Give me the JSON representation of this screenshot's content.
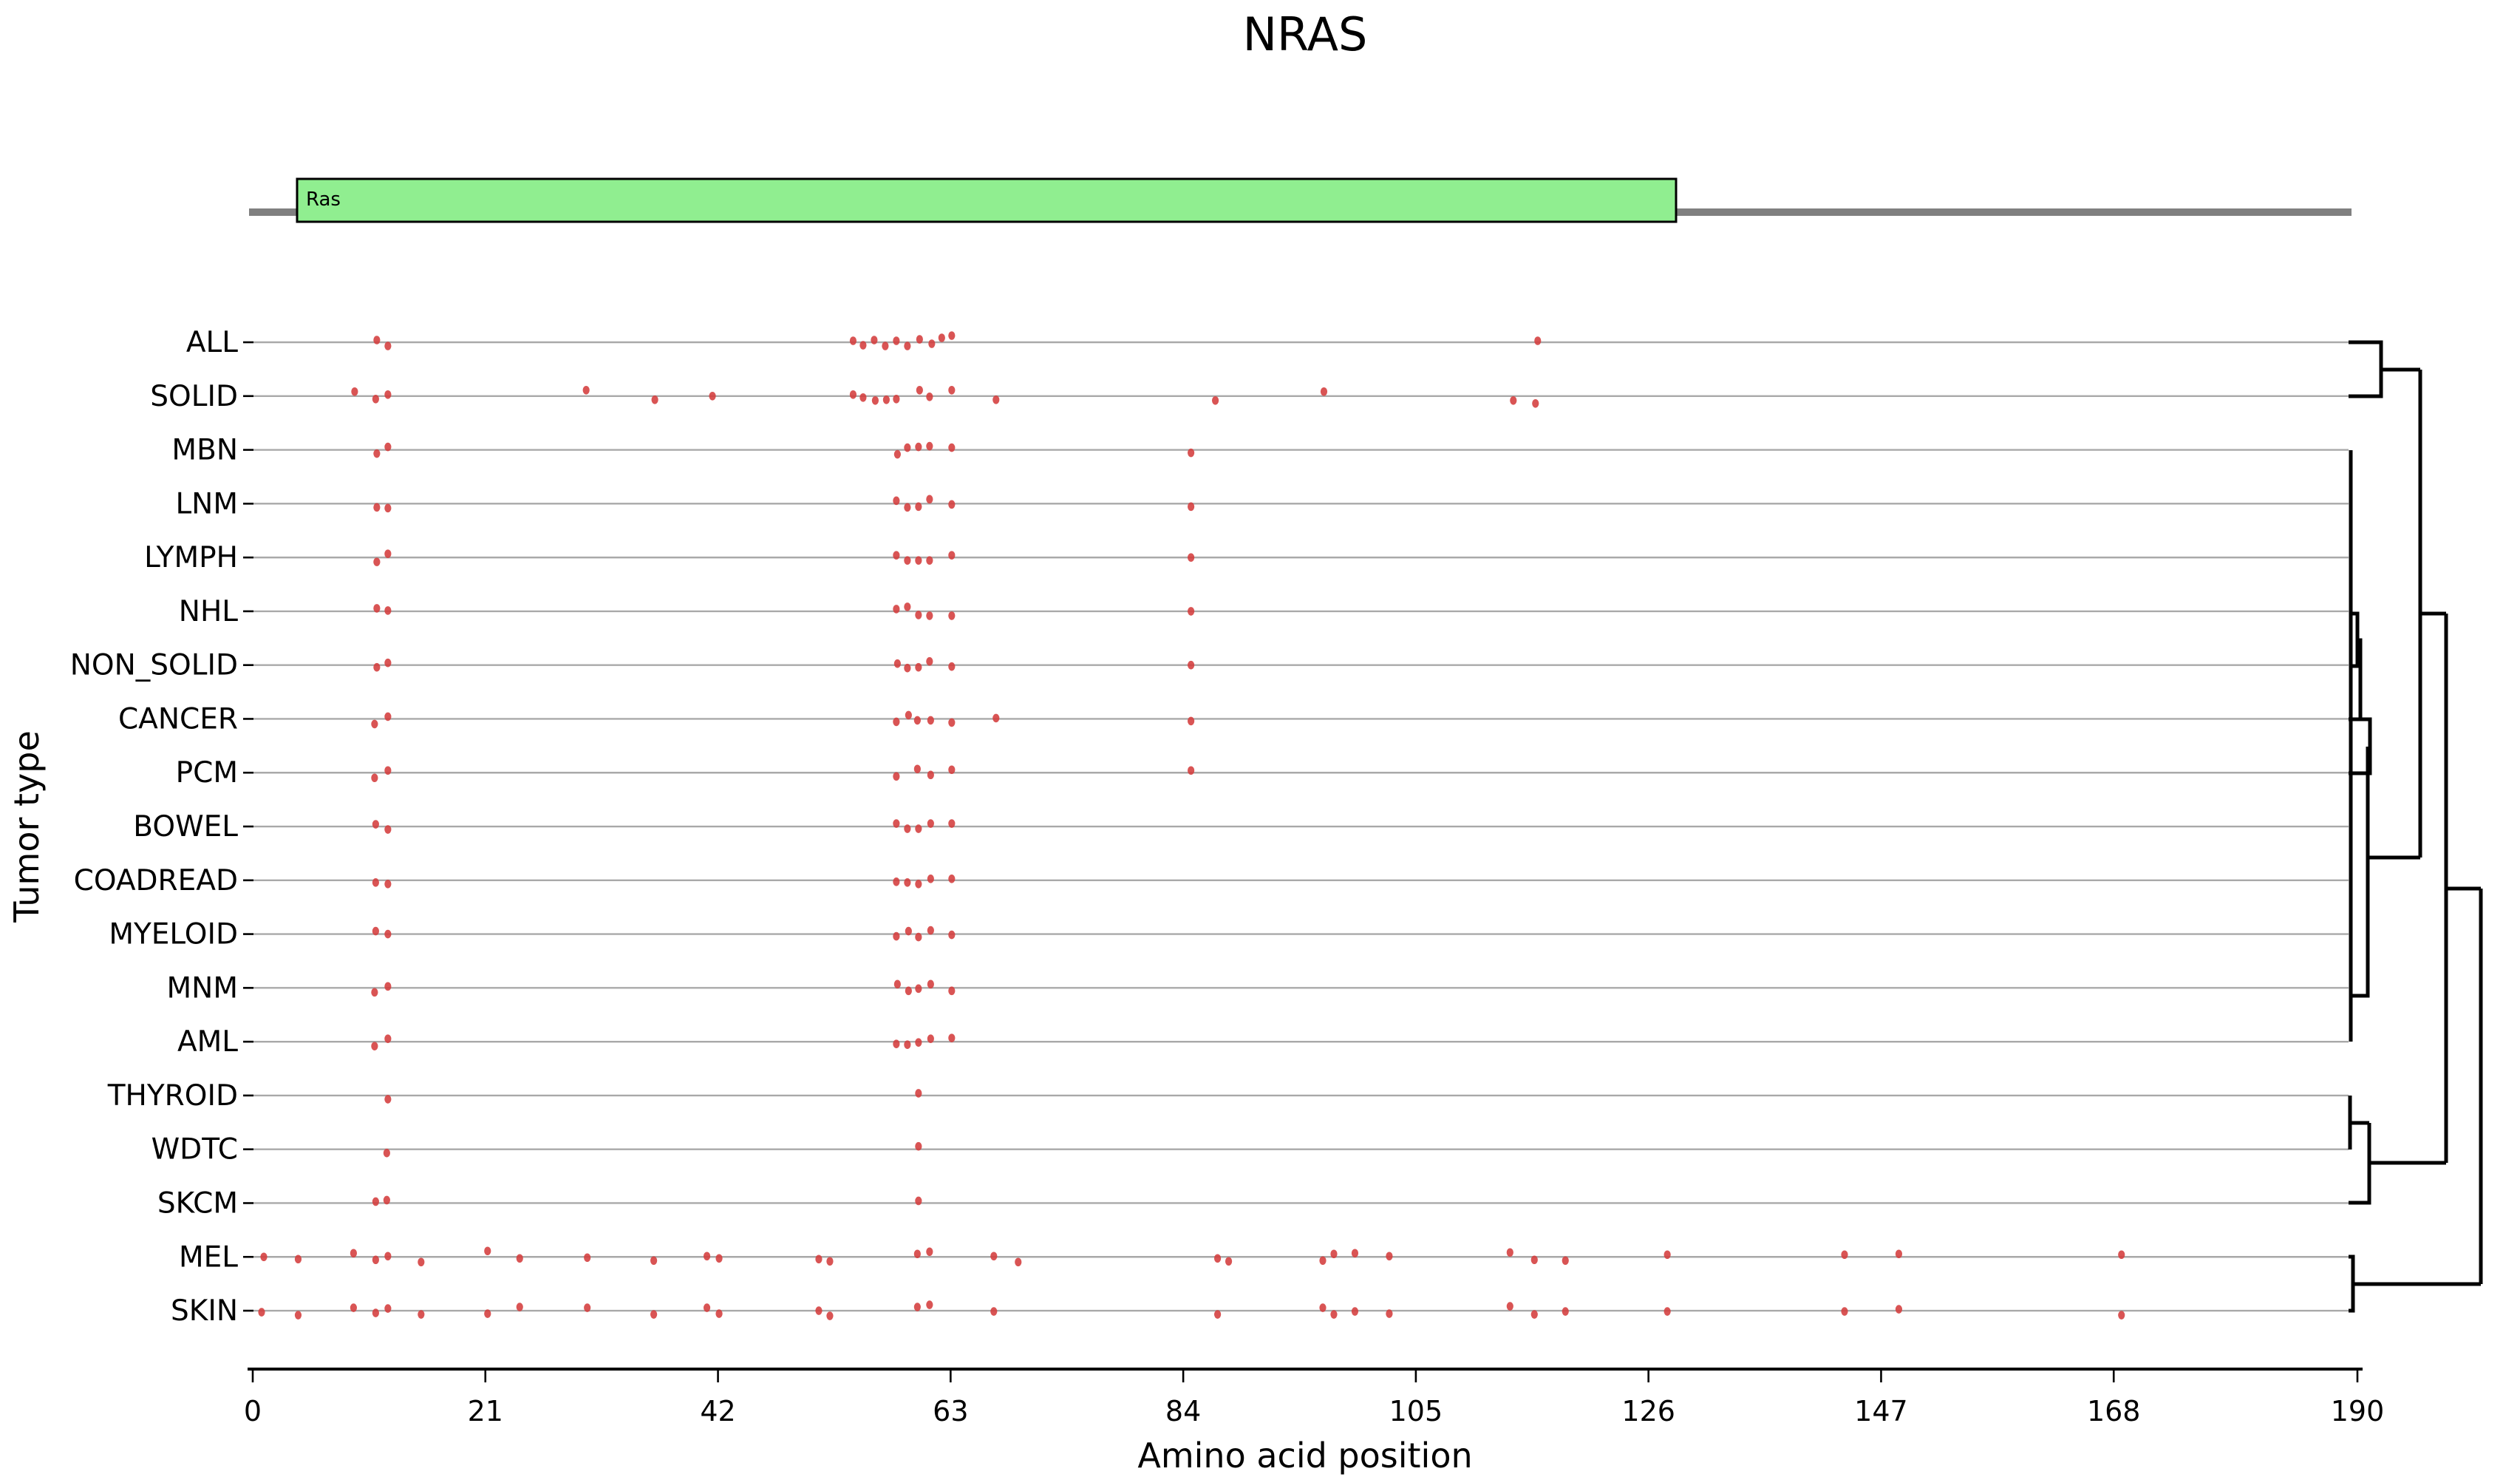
{
  "figure": {
    "title": "NRAS"
  },
  "protein_track": {
    "label": "Ras",
    "domain_start_aa": 4,
    "domain_end_aa": 128.5,
    "backbone_start_aa": 0,
    "backbone_end_aa": 190,
    "domain_fill": "#90ee90",
    "domain_border": "#000000",
    "backbone_color": "#808080"
  },
  "chart_data": {
    "type": "scatter",
    "title": "NRAS",
    "xlabel": "Amino acid position",
    "ylabel": "Tumor type",
    "xlim": [
      0,
      190
    ],
    "xticks": [
      0,
      21,
      42,
      63,
      84,
      105,
      126,
      147,
      168,
      190
    ],
    "grid": "horizontal-gray-rows",
    "legend": "none",
    "categories": [
      "ALL",
      "SOLID",
      "MBN",
      "LNM",
      "LYMPH",
      "NHL",
      "NON_SOLID",
      "CANCER",
      "PCM",
      "BOWEL",
      "COADREAD",
      "MYELOID",
      "MNM",
      "AML",
      "THYROID",
      "WDTC",
      "SKCM",
      "MEL",
      "SKIN"
    ],
    "point_style": {
      "color": "#d43c3c",
      "opacity": 0.88,
      "radius_x": 4.6,
      "radius_y": 5.8
    },
    "grid_color": "#a9a9a9",
    "series": [
      {
        "name": "ALL",
        "points": [
          [
            11.2,
            -3
          ],
          [
            12.2,
            5
          ],
          [
            54.2,
            -2
          ],
          [
            55.1,
            4
          ],
          [
            56.1,
            -3
          ],
          [
            57.1,
            5
          ],
          [
            58.1,
            -2
          ],
          [
            59.1,
            5
          ],
          [
            60.2,
            -4
          ],
          [
            61.3,
            2
          ],
          [
            62.2,
            -6
          ],
          [
            63.1,
            -9
          ],
          [
            116,
            -2
          ]
        ]
      },
      {
        "name": "SOLID",
        "points": [
          [
            9.2,
            -6
          ],
          [
            11.1,
            4
          ],
          [
            12.2,
            -2
          ],
          [
            30.1,
            -8
          ],
          [
            36.3,
            5
          ],
          [
            41.5,
            0
          ],
          [
            54.2,
            -2
          ],
          [
            55.1,
            2
          ],
          [
            56.2,
            6
          ],
          [
            57.2,
            5
          ],
          [
            58.1,
            4
          ],
          [
            60.2,
            -8
          ],
          [
            61.1,
            1
          ],
          [
            63.1,
            -8
          ],
          [
            67.1,
            5
          ],
          [
            86.9,
            6
          ],
          [
            96.7,
            -6
          ],
          [
            113.8,
            6
          ],
          [
            115.8,
            10
          ]
        ]
      },
      {
        "name": "MBN",
        "points": [
          [
            11.2,
            5
          ],
          [
            12.2,
            -4
          ],
          [
            58.2,
            6
          ],
          [
            59.1,
            -3
          ],
          [
            60.1,
            -4
          ],
          [
            61.1,
            -5
          ],
          [
            63.1,
            -3
          ],
          [
            84.7,
            4
          ]
        ]
      },
      {
        "name": "LNM",
        "points": [
          [
            11.2,
            5
          ],
          [
            12.2,
            6
          ],
          [
            58.1,
            -4
          ],
          [
            59.1,
            5
          ],
          [
            60.1,
            4
          ],
          [
            61.1,
            -6
          ],
          [
            63.1,
            1
          ],
          [
            84.7,
            4
          ]
        ]
      },
      {
        "name": "LYMPH",
        "points": [
          [
            11.2,
            6
          ],
          [
            12.2,
            -5
          ],
          [
            58.1,
            -3
          ],
          [
            59.1,
            4
          ],
          [
            60.1,
            4
          ],
          [
            61.1,
            4
          ],
          [
            63.1,
            -3
          ],
          [
            84.7,
            0
          ]
        ]
      },
      {
        "name": "NHL",
        "points": [
          [
            11.2,
            -4
          ],
          [
            12.2,
            -1
          ],
          [
            58.1,
            -3
          ],
          [
            59.1,
            -6
          ],
          [
            60.1,
            5
          ],
          [
            61.1,
            6
          ],
          [
            63.1,
            6
          ],
          [
            84.7,
            0
          ]
        ]
      },
      {
        "name": "NON_SOLID",
        "points": [
          [
            11.2,
            3
          ],
          [
            12.2,
            -3
          ],
          [
            58.2,
            -2
          ],
          [
            59.1,
            4
          ],
          [
            60.1,
            3
          ],
          [
            61.1,
            -5
          ],
          [
            63.1,
            2
          ],
          [
            84.7,
            0
          ]
        ]
      },
      {
        "name": "CANCER",
        "points": [
          [
            11,
            7
          ],
          [
            12.2,
            -3
          ],
          [
            58.1,
            4
          ],
          [
            59.2,
            -5
          ],
          [
            60,
            2
          ],
          [
            61.2,
            2
          ],
          [
            63.1,
            5
          ],
          [
            67.1,
            -1
          ],
          [
            84.7,
            3
          ]
        ]
      },
      {
        "name": "PCM",
        "points": [
          [
            11,
            7
          ],
          [
            12.2,
            -3
          ],
          [
            58.1,
            5
          ],
          [
            60,
            -5
          ],
          [
            61.2,
            3
          ],
          [
            63.1,
            -4
          ],
          [
            84.7,
            -3
          ]
        ]
      },
      {
        "name": "BOWEL",
        "points": [
          [
            11.1,
            -3
          ],
          [
            12.2,
            4
          ],
          [
            58.1,
            -4
          ],
          [
            59.1,
            3
          ],
          [
            60.1,
            3
          ],
          [
            61.2,
            -4
          ],
          [
            63.1,
            -4
          ]
        ]
      },
      {
        "name": "COADREAD",
        "points": [
          [
            11.1,
            3
          ],
          [
            12.2,
            5
          ],
          [
            58.1,
            2
          ],
          [
            59.1,
            3
          ],
          [
            60.1,
            5
          ],
          [
            61.2,
            -2
          ],
          [
            63.1,
            -2
          ]
        ]
      },
      {
        "name": "MYELOID",
        "points": [
          [
            11.1,
            -4
          ],
          [
            12.2,
            0
          ],
          [
            58.1,
            3
          ],
          [
            59.2,
            -4
          ],
          [
            60.1,
            4
          ],
          [
            61.2,
            -5
          ],
          [
            63.1,
            1
          ]
        ]
      },
      {
        "name": "MNM",
        "points": [
          [
            11,
            6
          ],
          [
            12.2,
            -2
          ],
          [
            58.2,
            -5
          ],
          [
            59.2,
            4
          ],
          [
            60.1,
            1
          ],
          [
            61.2,
            -5
          ],
          [
            63.1,
            4
          ]
        ]
      },
      {
        "name": "AML",
        "points": [
          [
            11,
            6
          ],
          [
            12.2,
            -4
          ],
          [
            58.1,
            3
          ],
          [
            59.1,
            4
          ],
          [
            60.1,
            1
          ],
          [
            61.2,
            -4
          ],
          [
            63.1,
            -5
          ]
        ]
      },
      {
        "name": "THYROID",
        "points": [
          [
            12.2,
            5
          ],
          [
            60.1,
            -3
          ]
        ]
      },
      {
        "name": "WDTC",
        "points": [
          [
            12.1,
            5
          ],
          [
            60.1,
            -4
          ]
        ]
      },
      {
        "name": "SKCM",
        "points": [
          [
            11.1,
            -2
          ],
          [
            12.1,
            -4
          ],
          [
            60.1,
            -3
          ]
        ]
      },
      {
        "name": "MEL",
        "points": [
          [
            1,
            0
          ],
          [
            4.1,
            3
          ],
          [
            9.1,
            -5
          ],
          [
            11.1,
            4
          ],
          [
            12.2,
            -1
          ],
          [
            15.2,
            7
          ],
          [
            21.2,
            -8
          ],
          [
            24.1,
            2
          ],
          [
            30.2,
            1
          ],
          [
            36.2,
            5
          ],
          [
            41,
            -1
          ],
          [
            42.1,
            2
          ],
          [
            51.1,
            3
          ],
          [
            52.1,
            6
          ],
          [
            60,
            -4
          ],
          [
            61.1,
            -7
          ],
          [
            66.9,
            -1
          ],
          [
            69.1,
            7
          ],
          [
            87.1,
            2
          ],
          [
            88.1,
            6
          ],
          [
            96.6,
            5
          ],
          [
            97.6,
            -4
          ],
          [
            99.5,
            -5
          ],
          [
            102.6,
            -1
          ],
          [
            113.5,
            -6
          ],
          [
            115.7,
            4
          ],
          [
            118.5,
            5
          ],
          [
            127.7,
            -3
          ],
          [
            143.7,
            -3
          ],
          [
            148.6,
            -4
          ],
          [
            168.7,
            -3
          ]
        ]
      },
      {
        "name": "SKIN",
        "points": [
          [
            0.8,
            2
          ],
          [
            4.1,
            6
          ],
          [
            9.1,
            -4
          ],
          [
            11.1,
            3
          ],
          [
            12.2,
            -3
          ],
          [
            15.2,
            5
          ],
          [
            21.2,
            4
          ],
          [
            24.1,
            -5
          ],
          [
            30.2,
            -4
          ],
          [
            36.2,
            5
          ],
          [
            41,
            -4
          ],
          [
            42.1,
            4
          ],
          [
            51.1,
            0
          ],
          [
            52.1,
            7
          ],
          [
            60,
            -5
          ],
          [
            61.1,
            -8
          ],
          [
            66.9,
            1
          ],
          [
            87.1,
            5
          ],
          [
            96.6,
            -4
          ],
          [
            97.6,
            5
          ],
          [
            99.5,
            1
          ],
          [
            102.6,
            4
          ],
          [
            113.5,
            -6
          ],
          [
            115.7,
            5
          ],
          [
            118.5,
            1
          ],
          [
            127.7,
            1
          ],
          [
            143.7,
            1
          ],
          [
            148.6,
            -2
          ],
          [
            168.7,
            6
          ]
        ]
      }
    ],
    "dendrogram": {
      "orientation": "right",
      "line_color": "#000000",
      "line_width": 5,
      "clusters_note": "ALL+SOLID | (MBN..AML chain, NHL+NON_SOLID, CANCER+PCM) | THYROID+WDTC+SKCM | MEL+SKIN",
      "segments": [
        [
          [
            3178,
            463
          ],
          [
            3222,
            463
          ],
          [
            3222,
            536
          ],
          [
            3178,
            536
          ]
        ],
        [
          [
            3222,
            500
          ],
          [
            3275,
            500
          ]
        ],
        [
          [
            3181,
            609
          ],
          [
            3181,
            1409
          ]
        ],
        [
          [
            3181,
            830
          ],
          [
            3190,
            830
          ],
          [
            3190,
            901
          ],
          [
            3181,
            901
          ]
        ],
        [
          [
            3190,
            866
          ],
          [
            3194,
            866
          ],
          [
            3194,
            973
          ]
        ],
        [
          [
            3178,
            973
          ],
          [
            3207,
            973
          ],
          [
            3207,
            1046
          ],
          [
            3178,
            1046
          ]
        ],
        [
          [
            3204,
            1010
          ],
          [
            3204,
            1347
          ],
          [
            3182,
            1347
          ]
        ],
        [
          [
            3204,
            1160
          ],
          [
            3275,
            1160
          ]
        ],
        [
          [
            3275,
            500
          ],
          [
            3275,
            1160
          ]
        ],
        [
          [
            3275,
            830
          ],
          [
            3310,
            830
          ]
        ],
        [
          [
            3180,
            1482
          ],
          [
            3180,
            1555
          ]
        ],
        [
          [
            3180,
            1519
          ],
          [
            3206,
            1519
          ]
        ],
        [
          [
            3206,
            1519
          ],
          [
            3206,
            1627
          ],
          [
            3178,
            1627
          ]
        ],
        [
          [
            3206,
            1573
          ],
          [
            3310,
            1573
          ]
        ],
        [
          [
            3310,
            830
          ],
          [
            3310,
            1573
          ]
        ],
        [
          [
            3310,
            1202
          ],
          [
            3357,
            1202
          ]
        ],
        [
          [
            3178,
            1700
          ],
          [
            3184,
            1700
          ],
          [
            3184,
            1773
          ],
          [
            3178,
            1773
          ]
        ],
        [
          [
            3184,
            1737
          ],
          [
            3357,
            1737
          ]
        ],
        [
          [
            3357,
            1202
          ],
          [
            3357,
            1737
          ]
        ]
      ]
    }
  }
}
